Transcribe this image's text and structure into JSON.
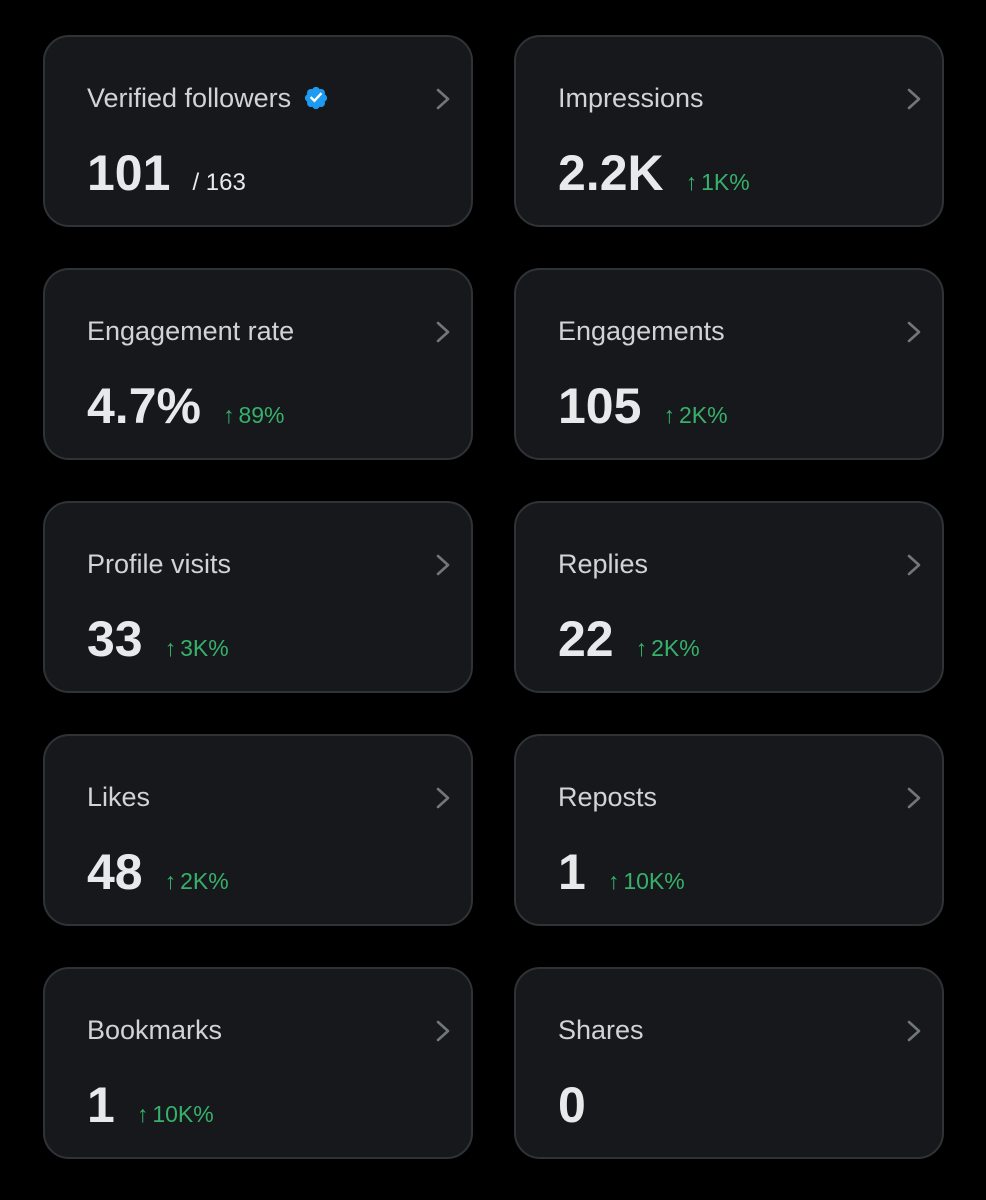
{
  "colors": {
    "background": "#000000",
    "card": "#16181c",
    "card_border": "#2f3336",
    "label": "#d1d3d6",
    "value": "#e7e9ea",
    "positive": "#36b06a",
    "verified_badge": "#1d9bf0",
    "chevron": "#71767b"
  },
  "cards": [
    {
      "title": "Verified followers",
      "icon": "verified-badge-icon",
      "value": "101",
      "total": "/ 163"
    },
    {
      "title": "Impressions",
      "value": "2.2K",
      "change_arrow": "↑",
      "change": "1K%"
    },
    {
      "title": "Engagement rate",
      "value": "4.7%",
      "change_arrow": "↑",
      "change": "89%"
    },
    {
      "title": "Engagements",
      "value": "105",
      "change_arrow": "↑",
      "change": "2K%"
    },
    {
      "title": "Profile visits",
      "value": "33",
      "change_arrow": "↑",
      "change": "3K%"
    },
    {
      "title": "Replies",
      "value": "22",
      "change_arrow": "↑",
      "change": "2K%"
    },
    {
      "title": "Likes",
      "value": "48",
      "change_arrow": "↑",
      "change": "2K%"
    },
    {
      "title": "Reposts",
      "value": "1",
      "change_arrow": "↑",
      "change": "10K%"
    },
    {
      "title": "Bookmarks",
      "value": "1",
      "change_arrow": "↑",
      "change": "10K%"
    },
    {
      "title": "Shares",
      "value": "0"
    }
  ]
}
